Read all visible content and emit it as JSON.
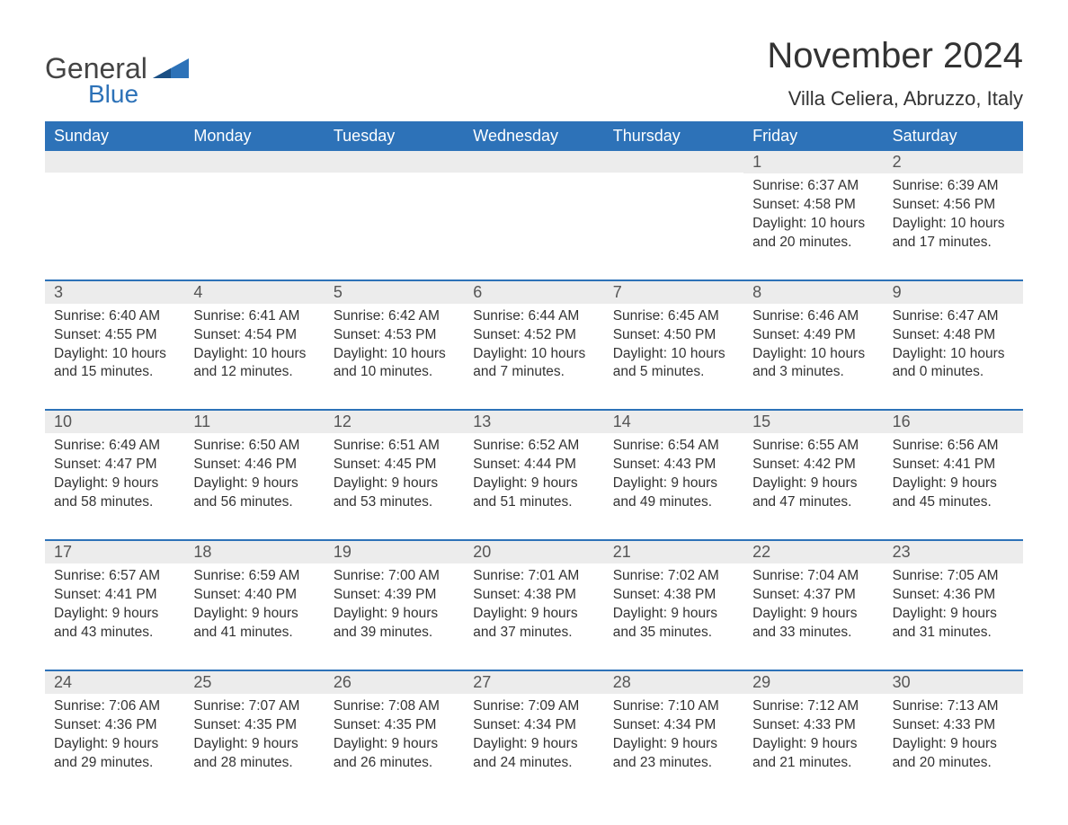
{
  "logo": {
    "general": "General",
    "blue": "Blue",
    "flag_color": "#2d72b8"
  },
  "header": {
    "title": "November 2024",
    "location": "Villa Celiera, Abruzzo, Italy"
  },
  "colors": {
    "header_bg": "#2d72b8",
    "header_text": "#ffffff",
    "daynum_bg": "#ececec",
    "row_border": "#2d72b8",
    "text": "#333333",
    "logo_gray": "#444444"
  },
  "typography": {
    "title_fontsize": 40,
    "location_fontsize": 22,
    "weekday_fontsize": 18,
    "daynum_fontsize": 18,
    "body_fontsize": 15.5,
    "logo_general_fontsize": 32,
    "logo_blue_fontsize": 28
  },
  "weekdays": [
    "Sunday",
    "Monday",
    "Tuesday",
    "Wednesday",
    "Thursday",
    "Friday",
    "Saturday"
  ],
  "labels": {
    "sunrise": "Sunrise:",
    "sunset": "Sunset:",
    "daylight": "Daylight:"
  },
  "weeks": [
    [
      null,
      null,
      null,
      null,
      null,
      {
        "n": "1",
        "rise": "6:37 AM",
        "set": "4:58 PM",
        "dl": "10 hours and 20 minutes."
      },
      {
        "n": "2",
        "rise": "6:39 AM",
        "set": "4:56 PM",
        "dl": "10 hours and 17 minutes."
      }
    ],
    [
      {
        "n": "3",
        "rise": "6:40 AM",
        "set": "4:55 PM",
        "dl": "10 hours and 15 minutes."
      },
      {
        "n": "4",
        "rise": "6:41 AM",
        "set": "4:54 PM",
        "dl": "10 hours and 12 minutes."
      },
      {
        "n": "5",
        "rise": "6:42 AM",
        "set": "4:53 PM",
        "dl": "10 hours and 10 minutes."
      },
      {
        "n": "6",
        "rise": "6:44 AM",
        "set": "4:52 PM",
        "dl": "10 hours and 7 minutes."
      },
      {
        "n": "7",
        "rise": "6:45 AM",
        "set": "4:50 PM",
        "dl": "10 hours and 5 minutes."
      },
      {
        "n": "8",
        "rise": "6:46 AM",
        "set": "4:49 PM",
        "dl": "10 hours and 3 minutes."
      },
      {
        "n": "9",
        "rise": "6:47 AM",
        "set": "4:48 PM",
        "dl": "10 hours and 0 minutes."
      }
    ],
    [
      {
        "n": "10",
        "rise": "6:49 AM",
        "set": "4:47 PM",
        "dl": "9 hours and 58 minutes."
      },
      {
        "n": "11",
        "rise": "6:50 AM",
        "set": "4:46 PM",
        "dl": "9 hours and 56 minutes."
      },
      {
        "n": "12",
        "rise": "6:51 AM",
        "set": "4:45 PM",
        "dl": "9 hours and 53 minutes."
      },
      {
        "n": "13",
        "rise": "6:52 AM",
        "set": "4:44 PM",
        "dl": "9 hours and 51 minutes."
      },
      {
        "n": "14",
        "rise": "6:54 AM",
        "set": "4:43 PM",
        "dl": "9 hours and 49 minutes."
      },
      {
        "n": "15",
        "rise": "6:55 AM",
        "set": "4:42 PM",
        "dl": "9 hours and 47 minutes."
      },
      {
        "n": "16",
        "rise": "6:56 AM",
        "set": "4:41 PM",
        "dl": "9 hours and 45 minutes."
      }
    ],
    [
      {
        "n": "17",
        "rise": "6:57 AM",
        "set": "4:41 PM",
        "dl": "9 hours and 43 minutes."
      },
      {
        "n": "18",
        "rise": "6:59 AM",
        "set": "4:40 PM",
        "dl": "9 hours and 41 minutes."
      },
      {
        "n": "19",
        "rise": "7:00 AM",
        "set": "4:39 PM",
        "dl": "9 hours and 39 minutes."
      },
      {
        "n": "20",
        "rise": "7:01 AM",
        "set": "4:38 PM",
        "dl": "9 hours and 37 minutes."
      },
      {
        "n": "21",
        "rise": "7:02 AM",
        "set": "4:38 PM",
        "dl": "9 hours and 35 minutes."
      },
      {
        "n": "22",
        "rise": "7:04 AM",
        "set": "4:37 PM",
        "dl": "9 hours and 33 minutes."
      },
      {
        "n": "23",
        "rise": "7:05 AM",
        "set": "4:36 PM",
        "dl": "9 hours and 31 minutes."
      }
    ],
    [
      {
        "n": "24",
        "rise": "7:06 AM",
        "set": "4:36 PM",
        "dl": "9 hours and 29 minutes."
      },
      {
        "n": "25",
        "rise": "7:07 AM",
        "set": "4:35 PM",
        "dl": "9 hours and 28 minutes."
      },
      {
        "n": "26",
        "rise": "7:08 AM",
        "set": "4:35 PM",
        "dl": "9 hours and 26 minutes."
      },
      {
        "n": "27",
        "rise": "7:09 AM",
        "set": "4:34 PM",
        "dl": "9 hours and 24 minutes."
      },
      {
        "n": "28",
        "rise": "7:10 AM",
        "set": "4:34 PM",
        "dl": "9 hours and 23 minutes."
      },
      {
        "n": "29",
        "rise": "7:12 AM",
        "set": "4:33 PM",
        "dl": "9 hours and 21 minutes."
      },
      {
        "n": "30",
        "rise": "7:13 AM",
        "set": "4:33 PM",
        "dl": "9 hours and 20 minutes."
      }
    ]
  ]
}
